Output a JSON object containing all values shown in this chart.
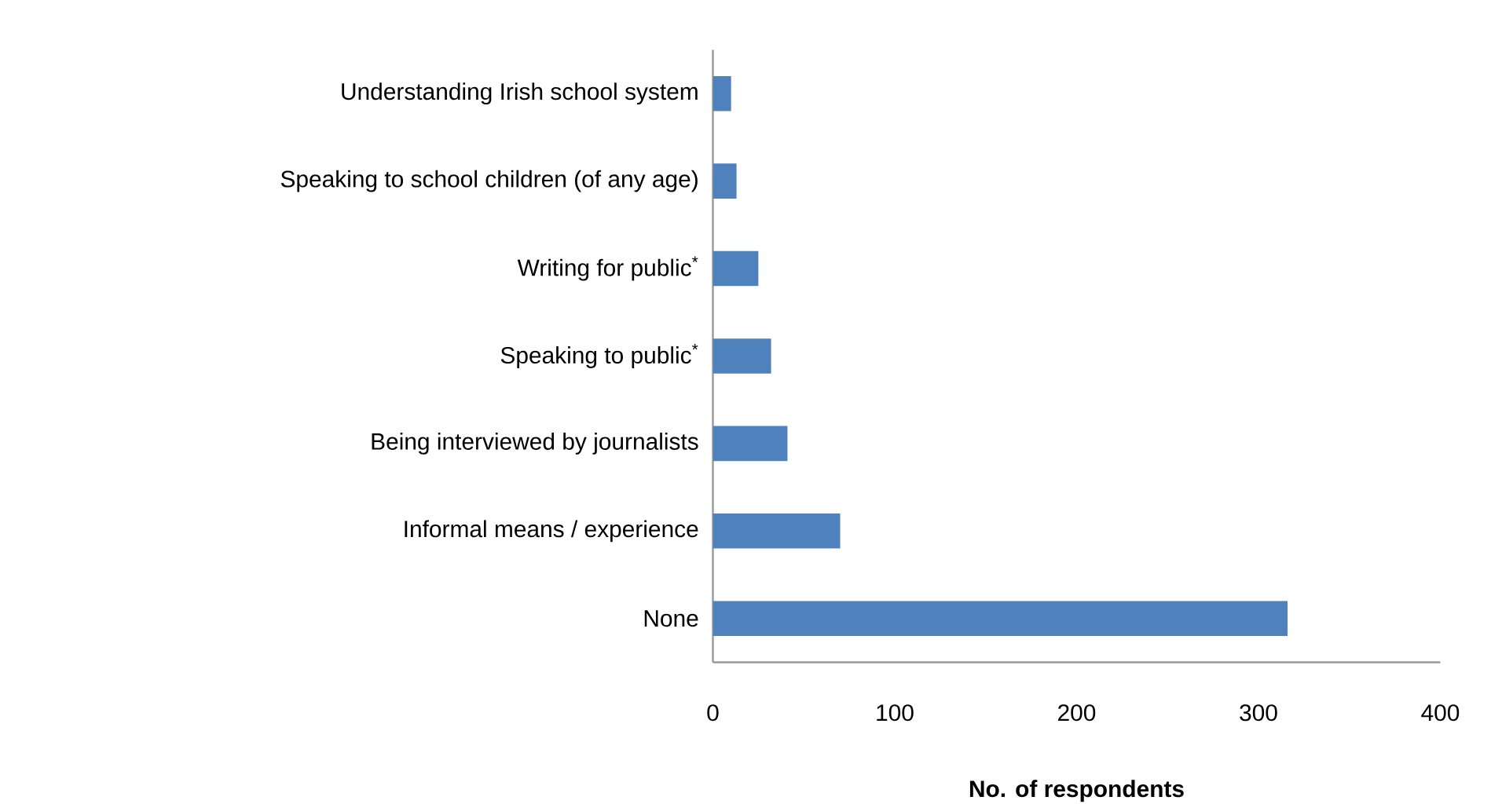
{
  "chart_data": {
    "type": "bar",
    "orientation": "horizontal",
    "xlabel": "**No. of respondents**",
    "categories": [
      "Understanding Irish school system",
      "Speaking to school children (of any age)",
      "Writing for public$^{*}$",
      "Speaking to public$^{*}$",
      "Being interviewed by journalists",
      "Informal means / experience",
      "None"
    ],
    "values": [
      10,
      13,
      25,
      32,
      41,
      70,
      316
    ],
    "color": "#4f81bd",
    "xlim": [
      0,
      400
    ],
    "xticks": [
      0,
      100,
      200,
      300,
      400
    ],
    "grid": false
  }
}
